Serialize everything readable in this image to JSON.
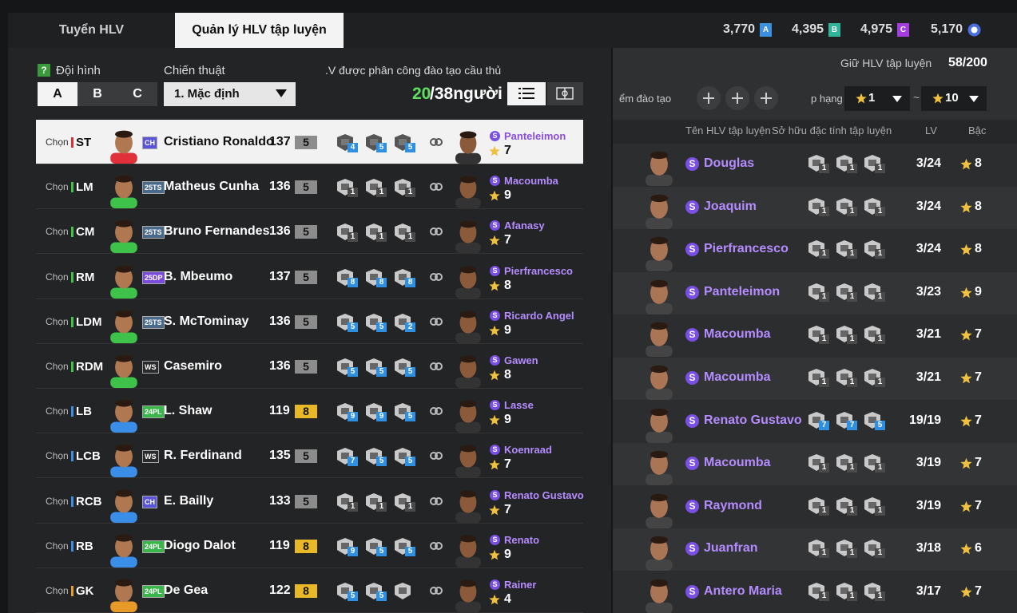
{
  "tabs": [
    "Tuyển HLV",
    "Quản lý HLV tập luyện"
  ],
  "currencies": [
    {
      "amount": "3,770",
      "icon": "A",
      "color": "#3d8fe0"
    },
    {
      "amount": "4,395",
      "icon": "B",
      "color": "#2fb59a"
    },
    {
      "amount": "4,975",
      "icon": "C",
      "color": "#a43ce0"
    },
    {
      "amount": "5,170",
      "color": "#4a6ee0"
    }
  ],
  "squad": {
    "help": "?",
    "formation_label": "Đội hình",
    "formations": [
      "A",
      "B",
      "C"
    ],
    "tactic_label": "Chiến thuật",
    "tactic": "1. Mặc định",
    "assigned_label": ".V được phân công đào tạo cầu thủ",
    "assigned": "20",
    "assigned_total": "/38người"
  },
  "players": [
    {
      "select": "Chọn",
      "position": "ST",
      "position_color": "#e0303a",
      "season": "CH",
      "season_color": "#5a55d8",
      "name": "Cristiano Ronaldo",
      "ovr": 137,
      "level": 5,
      "level_color": "#8c8c8c",
      "traits": [
        4,
        5,
        5
      ],
      "coach_class": "S",
      "coach": "Panteleimon",
      "coach_grade": 7
    },
    {
      "select": "Chọn",
      "position": "LM",
      "position_color": "#3ec24a",
      "season": "25TS",
      "season_color": "#4a6a8c",
      "name": "Matheus Cunha",
      "ovr": 136,
      "level": 5,
      "level_color": "#8c8c8c",
      "traits": [
        1,
        1,
        1
      ],
      "coach_class": "S",
      "coach": "Macoumba",
      "coach_grade": 9
    },
    {
      "select": "Chọn",
      "position": "CM",
      "position_color": "#3ec24a",
      "season": "25TS",
      "season_color": "#4a6a8c",
      "name": "Bruno Fernandes",
      "ovr": 136,
      "level": 5,
      "level_color": "#8c8c8c",
      "traits": [
        1,
        1,
        1
      ],
      "coach_class": "S",
      "coach": "Afanasy",
      "coach_grade": 7
    },
    {
      "select": "Chọn",
      "position": "RM",
      "position_color": "#3ec24a",
      "season": "25DP",
      "season_color": "#7a4ad8",
      "name": "B. Mbeumo",
      "ovr": 137,
      "level": 5,
      "level_color": "#8c8c8c",
      "traits": [
        8,
        8,
        8
      ],
      "coach_class": "S",
      "coach": "Pierfrancesco",
      "coach_grade": 8
    },
    {
      "select": "Chọn",
      "position": "LDM",
      "position_color": "#3ec24a",
      "season": "25TS",
      "season_color": "#4a6a8c",
      "name": "S. McTominay",
      "ovr": 136,
      "level": 5,
      "level_color": "#8c8c8c",
      "traits": [
        5,
        5,
        2
      ],
      "coach_class": "S",
      "coach": "Ricardo Angel",
      "coach_grade": 9
    },
    {
      "select": "Chọn",
      "position": "RDM",
      "position_color": "#3ec24a",
      "season": "WS",
      "season_color": "#2a2a2a",
      "name": "Casemiro",
      "ovr": 136,
      "level": 5,
      "level_color": "#8c8c8c",
      "traits": [
        5,
        5,
        5
      ],
      "coach_class": "S",
      "coach": "Gawen",
      "coach_grade": 8
    },
    {
      "select": "Chọn",
      "position": "LB",
      "position_color": "#3a8ee8",
      "season": "24PL",
      "season_color": "#3ab54a",
      "name": "L. Shaw",
      "ovr": 119,
      "level": 8,
      "level_color": "#e8b828",
      "traits": [
        9,
        9,
        5
      ],
      "coach_class": "S",
      "coach": "Lasse",
      "coach_grade": 9
    },
    {
      "select": "Chọn",
      "position": "LCB",
      "position_color": "#3a8ee8",
      "season": "WS",
      "season_color": "#2a2a2a",
      "name": "R. Ferdinand",
      "ovr": 135,
      "level": 5,
      "level_color": "#8c8c8c",
      "traits": [
        7,
        5,
        5
      ],
      "coach_class": "S",
      "coach": "Koenraad",
      "coach_grade": 7
    },
    {
      "select": "Chọn",
      "position": "RCB",
      "position_color": "#3a8ee8",
      "season": "CH",
      "season_color": "#5a55d8",
      "name": "E. Bailly",
      "ovr": 133,
      "level": 5,
      "level_color": "#8c8c8c",
      "traits": [
        1,
        1,
        1
      ],
      "coach_class": "S",
      "coach": "Renato Gustavo",
      "coach_grade": 7
    },
    {
      "select": "Chọn",
      "position": "RB",
      "position_color": "#3a8ee8",
      "season": "24PL",
      "season_color": "#3ab54a",
      "name": "Diogo Dalot",
      "ovr": 119,
      "level": 8,
      "level_color": "#e8b828",
      "traits": [
        9,
        5,
        5
      ],
      "coach_class": "S",
      "coach": "Renato",
      "coach_grade": 9
    },
    {
      "select": "Chọn",
      "position": "GK",
      "position_color": "#e89a28",
      "season": "24PL",
      "season_color": "#3ab54a",
      "name": "De Gea",
      "ovr": 122,
      "level": 8,
      "level_color": "#e8b828",
      "traits": [
        5,
        5,
        null
      ],
      "coach_class": "S",
      "coach": "Rainer",
      "coach_grade": 4
    }
  ],
  "coach_list": {
    "keep_label": "Giữ HLV tập luyện",
    "keep_count": "58/200",
    "points_label": "ểm đào tạo",
    "rank_label": "p hạng",
    "rank_from": "1",
    "range_sep": "~",
    "rank_to": "10",
    "headers": [
      "Tên HLV tập luyện",
      "Sở hữu đặc tính tập luyện",
      "LV",
      "Bậc"
    ],
    "coaches": [
      {
        "class": "S",
        "name": "Douglas",
        "traits": [
          1,
          1,
          1
        ],
        "lv": "3/24",
        "grade": 8
      },
      {
        "class": "S",
        "name": "Joaquim",
        "traits": [
          1,
          1,
          1
        ],
        "lv": "3/24",
        "grade": 8
      },
      {
        "class": "S",
        "name": "Pierfrancesco",
        "traits": [
          1,
          1,
          1
        ],
        "lv": "3/24",
        "grade": 8
      },
      {
        "class": "S",
        "name": "Panteleimon",
        "traits": [
          1,
          1,
          1
        ],
        "lv": "3/23",
        "grade": 9
      },
      {
        "class": "S",
        "name": "Macoumba",
        "traits": [
          1,
          1,
          1
        ],
        "lv": "3/21",
        "grade": 7
      },
      {
        "class": "S",
        "name": "Macoumba",
        "traits": [
          1,
          1,
          1
        ],
        "lv": "3/21",
        "grade": 7
      },
      {
        "class": "S",
        "name": "Renato Gustavo",
        "traits": [
          7,
          7,
          5
        ],
        "lv": "19/19",
        "grade": 7
      },
      {
        "class": "S",
        "name": "Macoumba",
        "traits": [
          1,
          1,
          1
        ],
        "lv": "3/19",
        "grade": 7
      },
      {
        "class": "S",
        "name": "Raymond",
        "traits": [
          1,
          1,
          1
        ],
        "lv": "3/19",
        "grade": 7
      },
      {
        "class": "S",
        "name": "Juanfran",
        "traits": [
          1,
          1,
          1
        ],
        "lv": "3/18",
        "grade": 6
      },
      {
        "class": "S",
        "name": "Antero Maria",
        "traits": [
          1,
          1,
          1
        ],
        "lv": "3/17",
        "grade": 7
      }
    ]
  }
}
